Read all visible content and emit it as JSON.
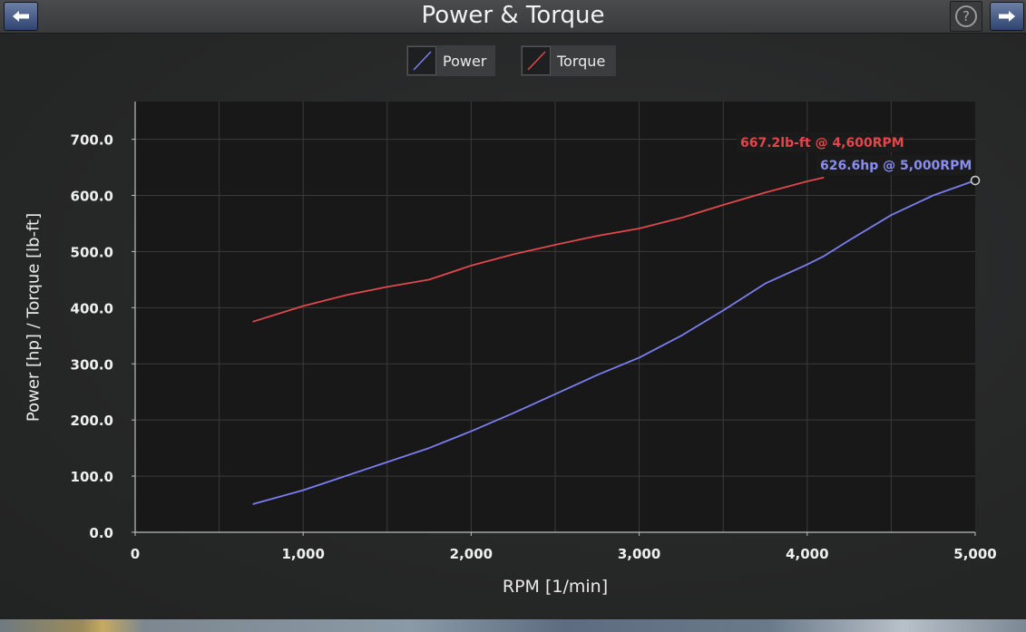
{
  "window": {
    "title": "Power & Torque",
    "help_label": "?"
  },
  "legend": {
    "items": [
      {
        "label": "Power",
        "color": "#7b7ef0"
      },
      {
        "label": "Torque",
        "color": "#e0484c"
      }
    ]
  },
  "chart_data": {
    "type": "line",
    "xlabel": "RPM [1/min]",
    "ylabel": "Power [hp] / Torque [lb-ft]",
    "xlim": [
      0,
      5000
    ],
    "ylim": [
      0,
      700
    ],
    "xticks": [
      "0",
      "1,000",
      "2,000",
      "3,000",
      "4,000",
      "5,000"
    ],
    "yticks": [
      "0.0",
      "100.0",
      "200.0",
      "300.0",
      "400.0",
      "500.0",
      "600.0",
      "700.0"
    ],
    "grid": true,
    "legend_position": "top-center",
    "series": [
      {
        "name": "Power",
        "color": "#7b7ef0",
        "x": [
          700,
          1000,
          1250,
          1500,
          1750,
          2000,
          2250,
          2500,
          2750,
          3000,
          3250,
          3500,
          3750,
          4000,
          4100,
          4250,
          4500,
          4750,
          5000
        ],
        "y": [
          50,
          75,
          100,
          125,
          150,
          180,
          212,
          246,
          280,
          311,
          350,
          395,
          443,
          477,
          492,
          520,
          565,
          600,
          626.6
        ]
      },
      {
        "name": "Torque",
        "color": "#e0484c",
        "x": [
          700,
          1000,
          1250,
          1500,
          1750,
          2000,
          2250,
          2500,
          2750,
          3000,
          3250,
          3500,
          3750,
          4000,
          4100
        ],
        "y": [
          375,
          403,
          422,
          437,
          450,
          475,
          495,
          512,
          528,
          541,
          560,
          583,
          605,
          625,
          632
        ]
      }
    ],
    "annotations": [
      {
        "text": "667.2lb-ft @ 4,600RPM",
        "color": "#e0484c"
      },
      {
        "text": "626.6hp @ 5,000RPM",
        "color": "#8a8df5"
      }
    ]
  }
}
